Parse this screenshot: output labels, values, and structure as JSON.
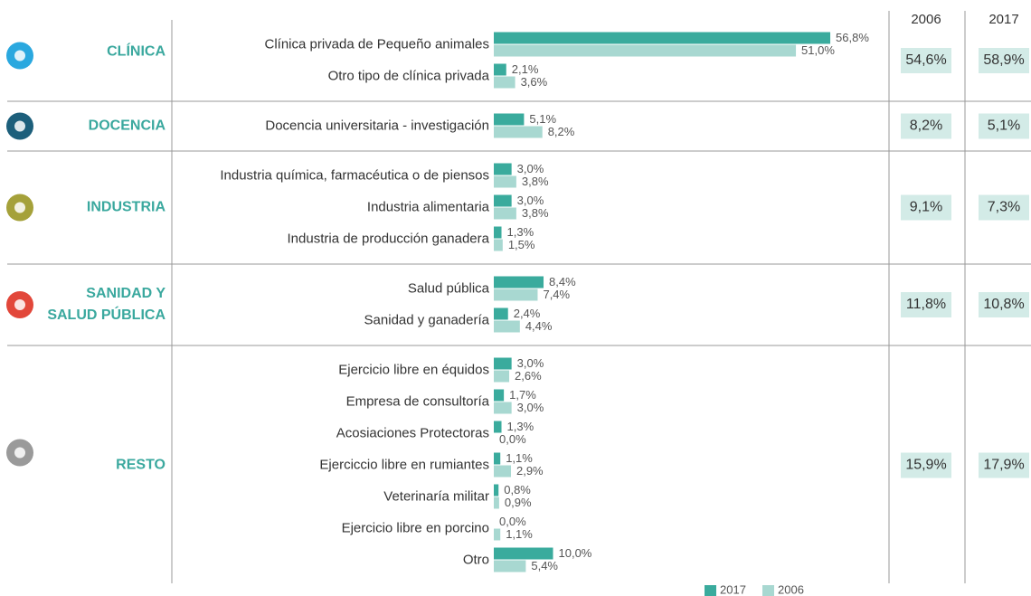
{
  "chart_data": {
    "type": "bar",
    "orientation": "horizontal",
    "xlim": [
      0,
      60
    ],
    "series": [
      {
        "name": "2017",
        "color": "#3aab9d"
      },
      {
        "name": "2006",
        "color": "#a8d8d1"
      }
    ],
    "total_columns": [
      "2006",
      "2017"
    ],
    "groups": [
      {
        "name": [
          "CLÍNICA"
        ],
        "icon_color": "#2aa8df",
        "categories": [
          "Clínica privada de Pequeño animales",
          "Otro tipo de clínica privada"
        ],
        "series": [
          {
            "values": [
              56.8,
              2.1
            ],
            "value_labels": [
              "56,8%",
              "2,1%"
            ]
          },
          {
            "values": [
              51.0,
              3.6
            ],
            "value_labels": [
              "51,0%",
              "3,6%"
            ]
          }
        ],
        "totals": [
          54.6,
          58.9
        ],
        "totals_labels": [
          "54,6%",
          "58,9%"
        ]
      },
      {
        "name": [
          "DOCENCIA"
        ],
        "icon_color": "#1d5f7b",
        "categories": [
          "Docencia universitaria - investigación"
        ],
        "series": [
          {
            "values": [
              5.1
            ],
            "value_labels": [
              "5,1%"
            ]
          },
          {
            "values": [
              8.2
            ],
            "value_labels": [
              "8,2%"
            ]
          }
        ],
        "totals": [
          8.2,
          5.1
        ],
        "totals_labels": [
          "8,2%",
          "5,1%"
        ]
      },
      {
        "name": [
          "INDUSTRIA"
        ],
        "icon_color": "#a5a13a",
        "categories": [
          "Industria química, farmacéutica o de piensos",
          "Industria alimentaria",
          "Industria de producción ganadera"
        ],
        "series": [
          {
            "values": [
              3.0,
              3.0,
              1.3
            ],
            "value_labels": [
              "3,0%",
              "3,0%",
              "1,3%"
            ]
          },
          {
            "values": [
              3.8,
              3.8,
              1.5
            ],
            "value_labels": [
              "3,8%",
              "3,8%",
              "1,5%"
            ]
          }
        ],
        "totals": [
          9.1,
          7.3
        ],
        "totals_labels": [
          "9,1%",
          "7,3%"
        ]
      },
      {
        "name": [
          "SANIDAD Y",
          "SALUD PÚBLICA"
        ],
        "icon_color": "#e2473a",
        "categories": [
          "Salud pública",
          "Sanidad y ganadería"
        ],
        "series": [
          {
            "values": [
              8.4,
              2.4
            ],
            "value_labels": [
              "8,4%",
              "2,4%"
            ]
          },
          {
            "values": [
              7.4,
              4.4
            ],
            "value_labels": [
              "7,4%",
              "4,4%"
            ]
          }
        ],
        "totals": [
          11.8,
          10.8
        ],
        "totals_labels": [
          "11,8%",
          "10,8%"
        ]
      },
      {
        "name": [
          "RESTO"
        ],
        "icon_color": "#9a9a9a",
        "categories": [
          "Ejercicio libre en équidos",
          "Empresa de consultoría",
          "Acosiaciones Protectoras",
          "Ejerciccio libre en rumiantes",
          "Veterinaría militar",
          "Ejercicio libre en porcino",
          "Otro"
        ],
        "series": [
          {
            "values": [
              3.0,
              1.7,
              1.3,
              1.1,
              0.8,
              0.0,
              10.0
            ],
            "value_labels": [
              "3,0%",
              "1,7%",
              "1,3%",
              "1,1%",
              "0,8%",
              "0,0%",
              "10,0%"
            ]
          },
          {
            "values": [
              2.6,
              3.0,
              0.0,
              2.9,
              0.9,
              1.1,
              5.4
            ],
            "value_labels": [
              "2,6%",
              "3,0%",
              "0,0%",
              "2,9%",
              "0,9%",
              "1,1%",
              "5,4%"
            ]
          }
        ],
        "totals": [
          15.9,
          17.9
        ],
        "totals_labels": [
          "15,9%",
          "17,9%"
        ]
      }
    ]
  }
}
